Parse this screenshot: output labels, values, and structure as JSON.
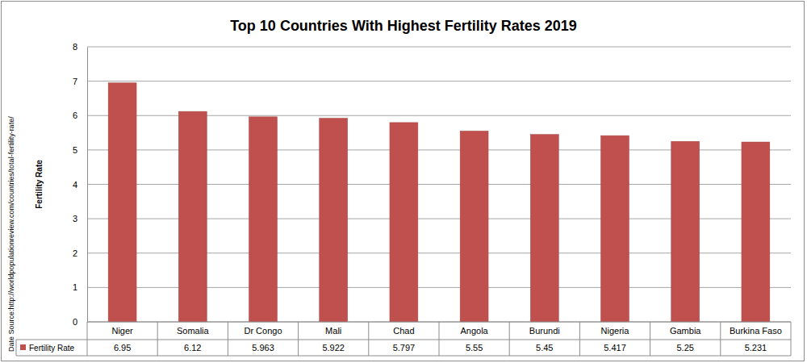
{
  "chart_data": {
    "type": "bar",
    "title": "Top 10 Countries With Highest Fertility Rates 2019",
    "y_label": "Fertility Rate",
    "annotations": [
      "Date Source:http://worldpopulationreview.com/countries/total-fertility-rate/"
    ],
    "categories": [
      "Niger",
      "Somalia",
      "Dr Congo",
      "Mali",
      "Chad",
      "Angola",
      "Burundi",
      "Nigeria",
      "Gambia",
      "Burkina Faso"
    ],
    "series": [
      {
        "name": "Fertility Rate",
        "color": "#c0504d",
        "values": [
          6.95,
          6.12,
          5.963,
          5.922,
          5.797,
          5.55,
          5.45,
          5.417,
          5.25,
          5.231
        ]
      }
    ],
    "ylim": [
      0,
      8
    ],
    "yticks": [
      0,
      1,
      2,
      3,
      4,
      5,
      6,
      7,
      8
    ],
    "grid": true,
    "data_labels": true
  }
}
